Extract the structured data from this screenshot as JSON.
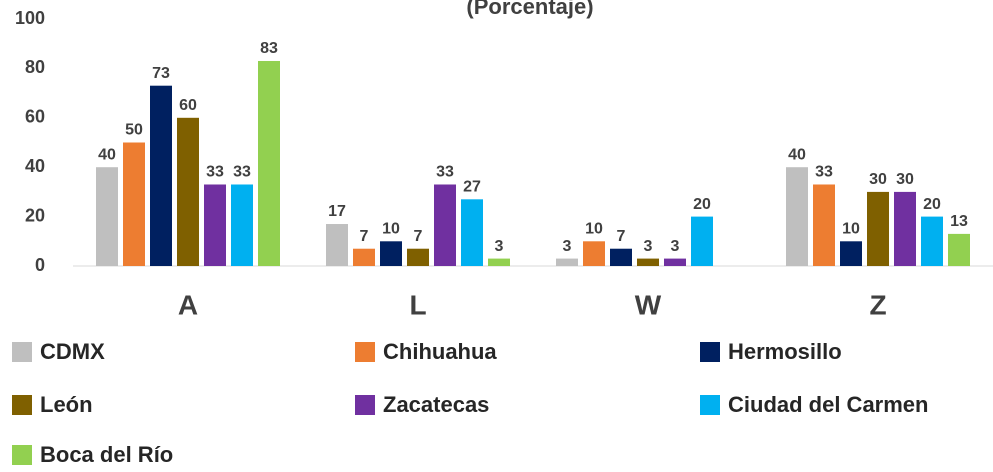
{
  "chart_data": {
    "type": "bar",
    "title": "(Porcentaje)",
    "categories": [
      "A",
      "L",
      "W",
      "Z"
    ],
    "series": [
      {
        "name": "CDMX",
        "color": "#bfbfbf",
        "values": [
          40,
          17,
          3,
          40
        ]
      },
      {
        "name": "Chihuahua",
        "color": "#ed7d31",
        "values": [
          50,
          7,
          10,
          33
        ]
      },
      {
        "name": "Hermosillo",
        "color": "#002060",
        "values": [
          73,
          10,
          7,
          10
        ]
      },
      {
        "name": "León",
        "color": "#7f6000",
        "values": [
          60,
          7,
          3,
          30
        ]
      },
      {
        "name": "Zacatecas",
        "color": "#7030a0",
        "values": [
          33,
          33,
          3,
          30
        ]
      },
      {
        "name": "Ciudad del Carmen",
        "color": "#00b0f0",
        "values": [
          33,
          27,
          20,
          20
        ]
      },
      {
        "name": "Boca del Río",
        "color": "#92d050",
        "values": [
          83,
          3,
          null,
          13
        ]
      }
    ],
    "ylim": [
      0,
      100
    ],
    "yticks": [
      0,
      20,
      40,
      60,
      80,
      100
    ],
    "grid": false,
    "legend": "bottom"
  }
}
